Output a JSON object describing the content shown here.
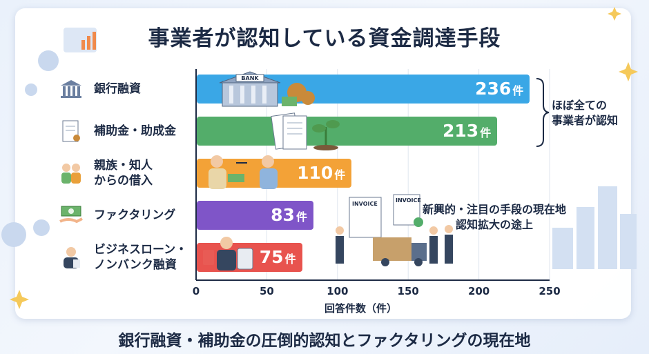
{
  "title": "事業者が認知している資金調達手段",
  "caption": "銀行融資・補助金の圧倒的認知とファクタリングの現在地",
  "chart_data": {
    "type": "bar",
    "orientation": "horizontal",
    "categories": [
      "銀行融資",
      "補助金・助成金",
      "親族・知人\nからの借入",
      "ファクタリング",
      "ビジネスローン・\nノンバンク融資"
    ],
    "values": [
      236,
      213,
      110,
      83,
      75
    ],
    "value_unit": "件",
    "value_labels": [
      "236",
      "213",
      "110",
      "83",
      "75"
    ],
    "colors": [
      "#3aa7e6",
      "#53ad6a",
      "#f3a237",
      "#7f55c8",
      "#e8534e"
    ],
    "xlabel": "回答件数（件）",
    "xlim": [
      0,
      250
    ],
    "xticks": [
      "0",
      "50",
      "100",
      "150",
      "200",
      "250"
    ],
    "xtick_values": [
      0,
      50,
      100,
      150,
      200,
      250
    ],
    "grid": true,
    "annotations": [
      {
        "text": "ほぼ全ての\n事業者が認知"
      },
      {
        "text": "新興的・注目の手段の現在地\n認知拡大の途上"
      }
    ]
  },
  "illustration_text": {
    "bank_sign": "BANK",
    "invoice_1": "INVOICE",
    "invoice_2": "INVOICE"
  },
  "icons": [
    "bank-icon",
    "document-icon",
    "people-icon",
    "money-icon",
    "businessman-icon"
  ]
}
